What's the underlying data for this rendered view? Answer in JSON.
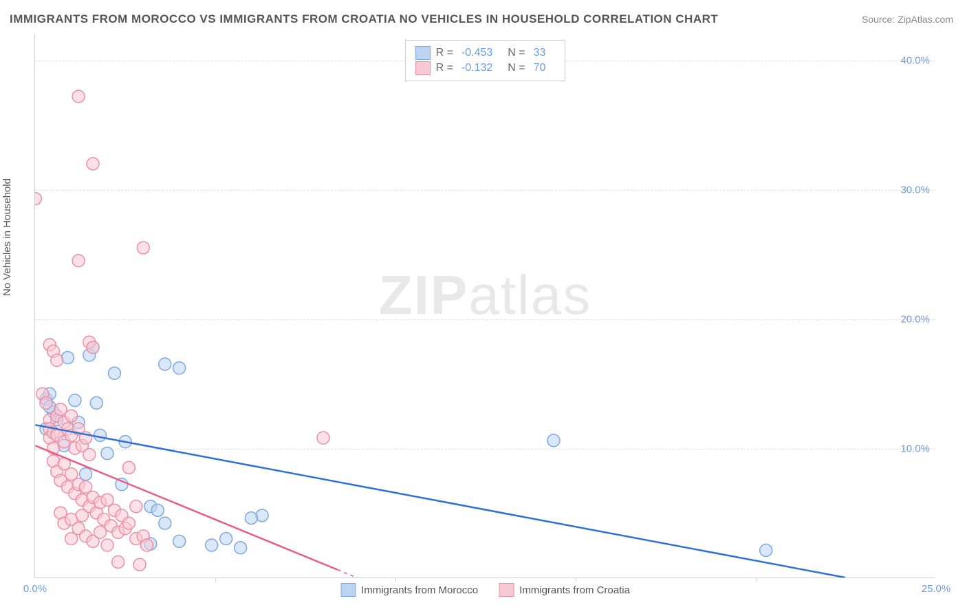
{
  "title": "IMMIGRANTS FROM MOROCCO VS IMMIGRANTS FROM CROATIA NO VEHICLES IN HOUSEHOLD CORRELATION CHART",
  "source": "Source: ZipAtlas.com",
  "ylabel": "No Vehicles in Household",
  "watermark_a": "ZIP",
  "watermark_b": "atlas",
  "chart": {
    "type": "scatter",
    "xlim": [
      0,
      25
    ],
    "ylim": [
      0,
      42
    ],
    "xticks": [
      {
        "v": 0,
        "label": "0.0%"
      },
      {
        "v": 25,
        "label": "25.0%"
      }
    ],
    "xtick_marks": [
      5,
      10,
      15,
      20
    ],
    "yticks": [
      {
        "v": 10,
        "label": "10.0%"
      },
      {
        "v": 20,
        "label": "20.0%"
      },
      {
        "v": 30,
        "label": "30.0%"
      },
      {
        "v": 40,
        "label": "40.0%"
      }
    ],
    "grid_color": "#dddddd",
    "background_color": "#ffffff",
    "marker_radius": 9,
    "marker_opacity": 0.55,
    "series": [
      {
        "name": "Immigrants from Morocco",
        "color_fill": "#bcd4f2",
        "color_stroke": "#7ba8e0",
        "line_color": "#2f70d6",
        "line_width": 2.5,
        "stats": {
          "R": "-0.453",
          "N": "33"
        },
        "trend": {
          "x1": 0,
          "y1": 11.8,
          "x2": 22.5,
          "y2": 0
        },
        "points": [
          [
            0.3,
            13.8
          ],
          [
            0.4,
            14.2
          ],
          [
            0.5,
            12.8
          ],
          [
            0.3,
            11.5
          ],
          [
            0.4,
            13.2
          ],
          [
            0.9,
            17.0
          ],
          [
            1.1,
            13.7
          ],
          [
            1.5,
            17.2
          ],
          [
            1.6,
            17.8
          ],
          [
            1.7,
            13.5
          ],
          [
            2.2,
            15.8
          ],
          [
            3.6,
            16.5
          ],
          [
            4.0,
            16.2
          ],
          [
            2.0,
            9.6
          ],
          [
            2.5,
            10.5
          ],
          [
            1.4,
            8.0
          ],
          [
            2.4,
            7.2
          ],
          [
            3.2,
            5.5
          ],
          [
            3.4,
            5.2
          ],
          [
            3.2,
            2.6
          ],
          [
            3.6,
            4.2
          ],
          [
            4.0,
            2.8
          ],
          [
            4.9,
            2.5
          ],
          [
            5.3,
            3.0
          ],
          [
            5.7,
            2.3
          ],
          [
            6.3,
            4.8
          ],
          [
            6.0,
            4.6
          ],
          [
            14.4,
            10.6
          ],
          [
            20.3,
            2.1
          ],
          [
            0.6,
            12.2
          ],
          [
            0.8,
            10.2
          ],
          [
            1.2,
            12.0
          ],
          [
            1.8,
            11.0
          ]
        ]
      },
      {
        "name": "Immigrants from Croatia",
        "color_fill": "#f7c9d4",
        "color_stroke": "#eb8fa6",
        "line_color": "#e85b85",
        "line_width": 2.5,
        "stats": {
          "R": "-0.132",
          "N": "70"
        },
        "trend_solid": {
          "x1": 0,
          "y1": 10.2,
          "x2": 8.4,
          "y2": 0.6
        },
        "trend_dashed": {
          "x1": 8.4,
          "y1": 0.6,
          "x2": 12.0,
          "y2": -3.5
        },
        "points": [
          [
            0.0,
            29.3
          ],
          [
            1.2,
            37.2
          ],
          [
            1.6,
            32.0
          ],
          [
            1.2,
            24.5
          ],
          [
            3.0,
            25.5
          ],
          [
            0.4,
            18.0
          ],
          [
            0.5,
            17.5
          ],
          [
            0.6,
            16.8
          ],
          [
            1.5,
            18.2
          ],
          [
            1.6,
            17.8
          ],
          [
            0.2,
            14.2
          ],
          [
            0.3,
            13.5
          ],
          [
            0.4,
            12.2
          ],
          [
            0.4,
            11.5
          ],
          [
            0.4,
            10.8
          ],
          [
            0.5,
            11.2
          ],
          [
            0.5,
            10.0
          ],
          [
            0.6,
            12.5
          ],
          [
            0.6,
            11.0
          ],
          [
            0.7,
            13.0
          ],
          [
            0.8,
            12.0
          ],
          [
            0.8,
            10.5
          ],
          [
            0.9,
            11.5
          ],
          [
            1.0,
            12.5
          ],
          [
            1.0,
            11.0
          ],
          [
            1.1,
            10.0
          ],
          [
            1.2,
            11.5
          ],
          [
            1.3,
            10.2
          ],
          [
            1.4,
            10.8
          ],
          [
            1.5,
            9.5
          ],
          [
            0.5,
            9.0
          ],
          [
            0.6,
            8.2
          ],
          [
            0.7,
            7.5
          ],
          [
            0.8,
            8.8
          ],
          [
            0.9,
            7.0
          ],
          [
            1.0,
            8.0
          ],
          [
            1.1,
            6.5
          ],
          [
            1.2,
            7.2
          ],
          [
            1.3,
            6.0
          ],
          [
            1.4,
            7.0
          ],
          [
            1.5,
            5.5
          ],
          [
            1.6,
            6.2
          ],
          [
            1.7,
            5.0
          ],
          [
            1.8,
            5.8
          ],
          [
            1.9,
            4.5
          ],
          [
            2.0,
            6.0
          ],
          [
            2.1,
            4.0
          ],
          [
            2.2,
            5.2
          ],
          [
            2.3,
            3.5
          ],
          [
            2.4,
            4.8
          ],
          [
            2.5,
            3.8
          ],
          [
            2.6,
            4.2
          ],
          [
            2.8,
            3.0
          ],
          [
            2.6,
            8.5
          ],
          [
            2.8,
            5.5
          ],
          [
            0.7,
            5.0
          ],
          [
            0.8,
            4.2
          ],
          [
            1.0,
            4.5
          ],
          [
            1.2,
            3.8
          ],
          [
            1.4,
            3.2
          ],
          [
            1.6,
            2.8
          ],
          [
            1.8,
            3.5
          ],
          [
            2.0,
            2.5
          ],
          [
            2.3,
            1.2
          ],
          [
            2.9,
            1.0
          ],
          [
            3.0,
            3.2
          ],
          [
            3.1,
            2.5
          ],
          [
            1.0,
            3.0
          ],
          [
            8.0,
            10.8
          ],
          [
            1.3,
            4.8
          ]
        ]
      }
    ]
  }
}
